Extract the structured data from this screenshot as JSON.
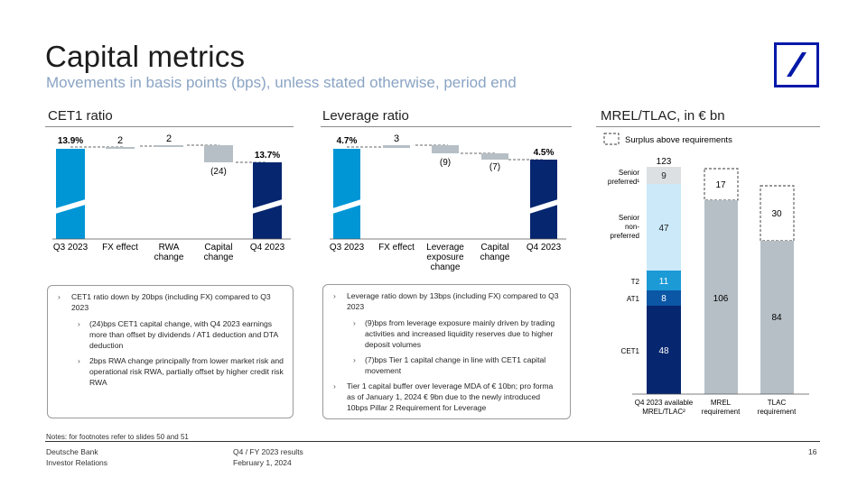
{
  "header": {
    "title": "Capital metrics",
    "subtitle": "Movements in basis points (bps), unless stated otherwise, period end"
  },
  "colors": {
    "brand_blue": "#0018a8",
    "light_blue": "#0096d6",
    "dark_navy": "#06266f",
    "grey": "#b6bfc6",
    "pale_blue": "#cbe9f9",
    "mid_blue": "#0b56a5",
    "cyan": "#1b9ad6"
  },
  "sections": {
    "cet1_title": "CET1 ratio",
    "leverage_title": "Leverage ratio",
    "mrel_title": "MREL/TLAC, in € bn"
  },
  "chart_data": [
    {
      "type": "bar",
      "subtype": "waterfall",
      "title": "CET1 ratio",
      "categories": [
        "Q3 2023",
        "FX effect",
        "RWA change",
        "Capital change",
        "Q4 2023"
      ],
      "values": [
        13.9,
        0.02,
        0.02,
        -0.24,
        13.7
      ],
      "labels": [
        "13.9%",
        "2",
        "2",
        "(24)",
        "13.7%"
      ],
      "units": "start/end in %, movements in bps"
    },
    {
      "type": "bar",
      "subtype": "waterfall",
      "title": "Leverage ratio",
      "categories": [
        "Q3 2023",
        "FX effect",
        "Leverage exposure change",
        "Capital change",
        "Q4 2023"
      ],
      "values": [
        4.7,
        0.03,
        -0.09,
        -0.07,
        4.5
      ],
      "labels": [
        "4.7%",
        "3",
        "(9)",
        "(7)",
        "4.5%"
      ],
      "units": "start/end in %, movements in bps"
    },
    {
      "type": "bar",
      "subtype": "stacked",
      "title": "MREL/TLAC, in € bn",
      "categories": [
        "Q4 2023 available MREL/TLAC²",
        "MREL requirement",
        "TLAC requirement"
      ],
      "legend": "Surplus above requirements",
      "available": {
        "total": 123,
        "series": [
          {
            "name": "CET1",
            "value": 48
          },
          {
            "name": "AT1",
            "value": 8
          },
          {
            "name": "T2",
            "value": 11
          },
          {
            "name": "Senior non-preferred",
            "value": 47
          },
          {
            "name": "Senior preferred¹",
            "value": 9
          }
        ]
      },
      "requirements": [
        {
          "name": "MREL requirement",
          "value": 106,
          "surplus": 17
        },
        {
          "name": "TLAC requirement",
          "value": 84,
          "surplus": 30
        }
      ]
    }
  ],
  "cet1_chart": {
    "labels": {
      "start": "13.9%",
      "fx": "2",
      "rwa": "2",
      "cap": "(24)",
      "end": "13.7%"
    },
    "x": {
      "start": "Q3 2023",
      "fx": "FX effect",
      "rwa1": "RWA",
      "rwa2": "change",
      "cap1": "Capital",
      "cap2": "change",
      "end": "Q4 2023"
    }
  },
  "lev_chart": {
    "labels": {
      "start": "4.7%",
      "fx": "3",
      "exp": "(9)",
      "cap": "(7)",
      "end": "4.5%"
    },
    "x": {
      "start": "Q3 2023",
      "fx": "FX effect",
      "exp1": "Leverage",
      "exp2": "exposure",
      "exp3": "change",
      "cap1": "Capital",
      "cap2": "change",
      "end": "Q4 2023"
    }
  },
  "mrel_chart": {
    "legend": "Surplus above requirements",
    "total": "123",
    "seg": {
      "cet1": "48",
      "at1": "8",
      "t2": "11",
      "snp": "47",
      "sp": "9"
    },
    "side": {
      "sp1": "Senior",
      "sp2": "preferred¹",
      "snp1": "Senior",
      "snp2": "non-",
      "snp3": "preferred",
      "t2": "T2",
      "at1": "AT1",
      "cet1": "CET1"
    },
    "mrel_val": "106",
    "mrel_surplus": "17",
    "tlac_val": "84",
    "tlac_surplus": "30",
    "x": {
      "avail1": "Q4 2023 available",
      "avail2": "MREL/TLAC²",
      "mrel1": "MREL",
      "mrel2": "requirement",
      "tlac1": "TLAC",
      "tlac2": "requirement"
    }
  },
  "cet1_box": {
    "p1": "CET1 ratio down by 20bps (including FX) compared to Q3 2023",
    "s1": "(24)bps CET1 capital change, with Q4 2023 earnings more than offset by dividends / AT1 deduction and DTA deduction",
    "s2": "2bps RWA change principally from lower market risk and operational risk RWA, partially offset by higher credit risk RWA"
  },
  "lev_box": {
    "p1": "Leverage ratio down by 13bps (including FX) compared to Q3 2023",
    "s1": "(9)bps from leverage exposure mainly driven by trading activities and increased liquidity reserves due to higher deposit volumes",
    "s2": "(7)bps Tier 1 capital change in line with CET1 capital movement",
    "p2": "Tier 1 capital buffer over leverage MDA of € 10bn; pro forma as of January 1, 2024 € 9bn due to the newly introduced 10bps Pillar 2 Requirement for Leverage"
  },
  "notes": "Notes: for footnotes refer to slides 50 and 51",
  "footer": {
    "company": "Deutsche Bank",
    "dept": "Investor Relations",
    "doc": "Q4 / FY 2023 results",
    "date": "February 1, 2024",
    "page": "16"
  }
}
